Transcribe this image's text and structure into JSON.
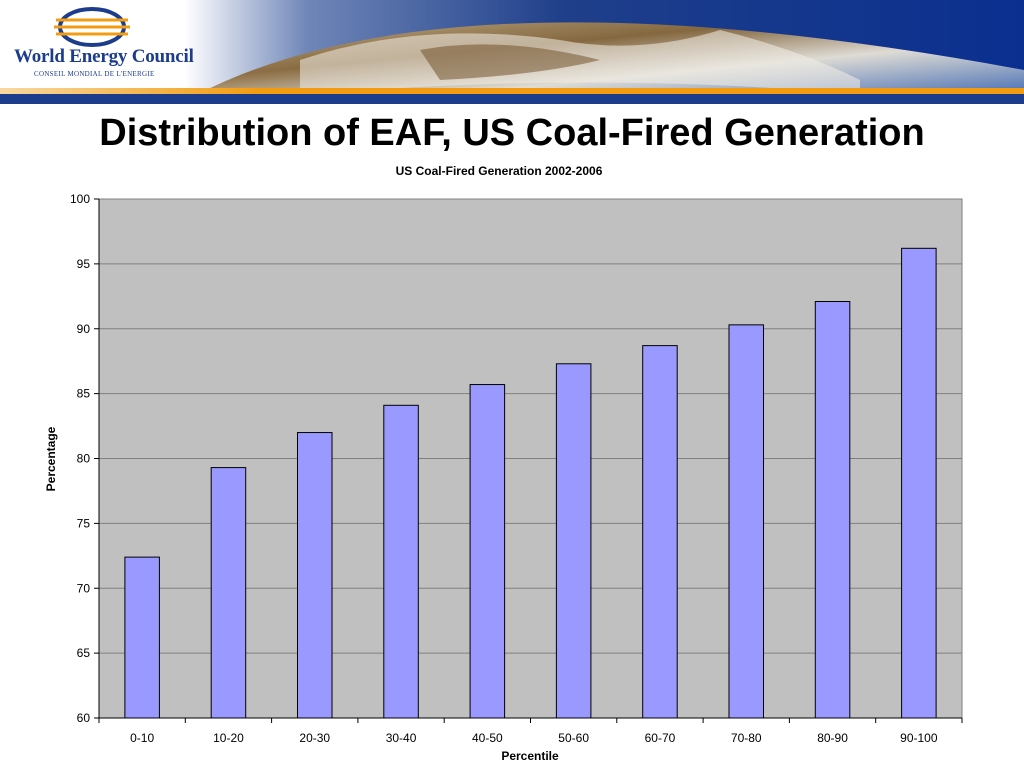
{
  "header": {
    "logo_name": "World Energy Council",
    "logo_subtitle": "CONSEIL MONDIAL DE L'ENERGIE",
    "brand_colors": {
      "navy": "#1c3c8c",
      "orange": "#f39c12"
    }
  },
  "slide": {
    "title": "Distribution of EAF, US Coal-Fired Generation"
  },
  "chart_data": {
    "type": "bar",
    "title": "US Coal-Fired Generation 2002-2006",
    "xlabel": "Percentile",
    "ylabel": "Percentage",
    "categories": [
      "0-10",
      "10-20",
      "20-30",
      "30-40",
      "40-50",
      "50-60",
      "60-70",
      "70-80",
      "80-90",
      "90-100"
    ],
    "values": [
      72.4,
      79.3,
      82.0,
      84.1,
      85.7,
      87.3,
      88.7,
      90.3,
      92.1,
      96.2
    ],
    "ylim": [
      60,
      100
    ],
    "yticks": [
      60,
      65,
      70,
      75,
      80,
      85,
      90,
      95,
      100
    ],
    "grid": true,
    "legend": "none",
    "colors": {
      "bar_fill": "#9999ff",
      "plot_background": "#c0c0c0",
      "gridline": "#808080"
    }
  }
}
